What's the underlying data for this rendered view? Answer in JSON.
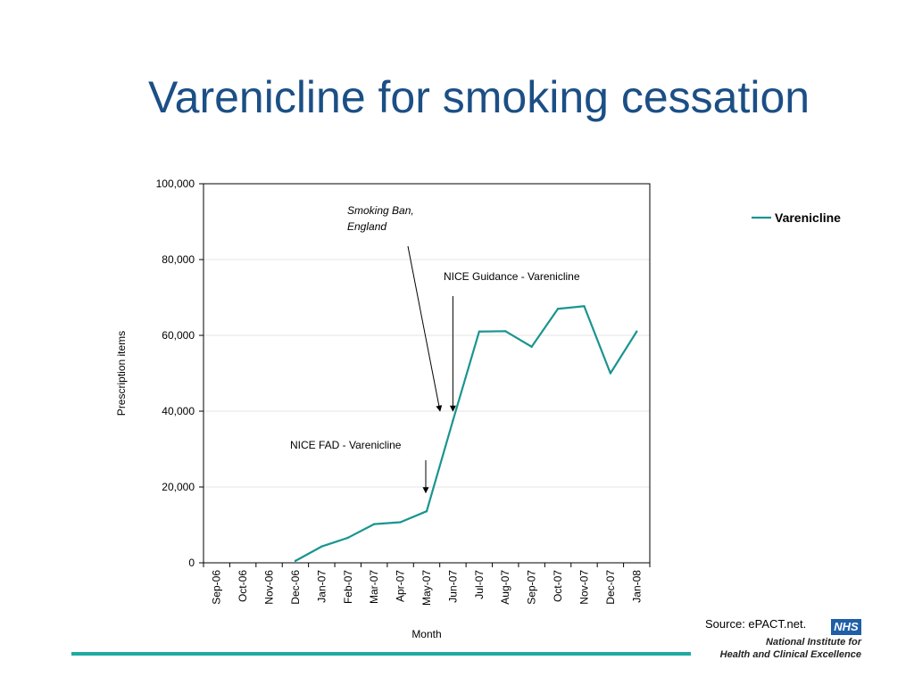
{
  "slide": {
    "title": "Varenicline for smoking cessation",
    "source": "Source: ePACT.net.",
    "logo": {
      "badge": "NHS",
      "org_line1": "National Institute for",
      "org_line2": "Health and Clinical Excellence"
    }
  },
  "colors": {
    "title": "#1b4f85",
    "series": "#1a9490",
    "footer_rule": "#1eaaa0",
    "nhs_blue": "#1f5fa8"
  },
  "chart_data": {
    "type": "line",
    "xlabel": "Month",
    "ylabel": "Prescription items",
    "ylim": [
      0,
      100000
    ],
    "yticks": [
      0,
      20000,
      40000,
      60000,
      80000,
      100000
    ],
    "ytick_labels": [
      "0",
      "20,000",
      "40,000",
      "60,000",
      "80,000",
      "100,000"
    ],
    "categories": [
      "Sep-06",
      "Oct-06",
      "Nov-06",
      "Dec-06",
      "Jan-07",
      "Feb-07",
      "Mar-07",
      "Apr-07",
      "May-07",
      "Jun-07",
      "Jul-07",
      "Aug-07",
      "Sep-07",
      "Oct-07",
      "Nov-07",
      "Dec-07",
      "Jan-08"
    ],
    "series": [
      {
        "name": "Varenicline",
        "values": [
          null,
          null,
          null,
          500,
          4300,
          6600,
          10200,
          10700,
          13600,
          37500,
          61000,
          61100,
          57000,
          67000,
          67700,
          50000,
          61000
        ]
      }
    ],
    "legend": {
      "position": "right",
      "label": "Varenicline"
    },
    "grid": true,
    "annotations": [
      {
        "text_lines": [
          "Smoking Ban,",
          "England"
        ],
        "style": "italic",
        "target_category": "Jun-07",
        "target_value": 40000
      },
      {
        "text_lines": [
          "NICE Guidance -  Varenicline"
        ],
        "style": "normal",
        "target_category": "Jun-07",
        "target_value": 40000
      },
      {
        "text_lines": [
          "NICE FAD - Varenicline"
        ],
        "style": "normal",
        "target_category": "May-07",
        "target_value": 18000
      }
    ]
  }
}
